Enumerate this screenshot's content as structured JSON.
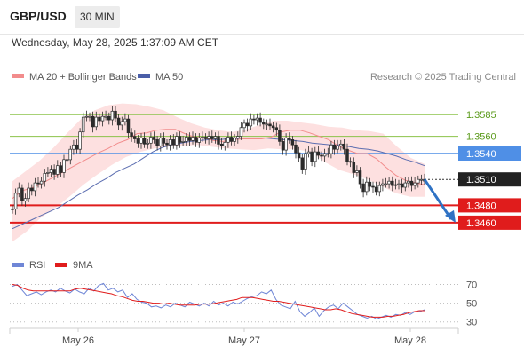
{
  "header": {
    "pair": "GBP/USD",
    "timeframe": "30 MIN"
  },
  "timestamp": "Wednesday, May 28, 2025 1:37:09 AM CET",
  "credit": "Research © 2025 Trading Central",
  "colors": {
    "bull": "#2e7d32",
    "bear": "#c62828",
    "ma20": "#f28c8c",
    "band": "#fde0e0",
    "ma50": "#5b6db0",
    "target": "#e01c1c",
    "resistance": "#8bc34a",
    "pivot": "#4f8fe6",
    "arrow": "#2f72c4",
    "rsi": "#6f86d6",
    "rsi_ma": "#e01c1c"
  },
  "chart_data": [
    {
      "type": "candlestick",
      "title": "",
      "legend": [
        "MA 20 + Bollinger Bands",
        "MA 50"
      ],
      "x_ticks": [
        "May 26",
        "May 27",
        "May 28"
      ],
      "ylim": [
        1.3425,
        1.3615
      ],
      "levels": [
        {
          "label": "1.3585",
          "value": 1.3585,
          "kind": "resistance"
        },
        {
          "label": "1.3560",
          "value": 1.356,
          "kind": "resistance"
        },
        {
          "label": "1.3540",
          "value": 1.354,
          "kind": "pivot"
        },
        {
          "label": "1.3510",
          "value": 1.351,
          "kind": "last"
        },
        {
          "label": "1.3480",
          "value": 1.348,
          "kind": "target"
        },
        {
          "label": "1.3460",
          "value": 1.346,
          "kind": "target"
        }
      ],
      "close": [
        1.3476,
        1.3494,
        1.35,
        1.3485,
        1.3488,
        1.35,
        1.3497,
        1.3506,
        1.3505,
        1.3508,
        1.3517,
        1.3518,
        1.3522,
        1.3516,
        1.3526,
        1.3518,
        1.3533,
        1.3533,
        1.3545,
        1.355,
        1.3545,
        1.3565,
        1.3582,
        1.3583,
        1.3583,
        1.3571,
        1.3582,
        1.3578,
        1.3583,
        1.3583,
        1.3579,
        1.3589,
        1.3581,
        1.3573,
        1.3577,
        1.358,
        1.3564,
        1.356,
        1.3557,
        1.3552,
        1.3558,
        1.3551,
        1.3552,
        1.3559,
        1.3556,
        1.3549,
        1.3558,
        1.3552,
        1.355,
        1.3556,
        1.355,
        1.356,
        1.3553,
        1.3554,
        1.3559,
        1.3555,
        1.3559,
        1.3553,
        1.3558,
        1.3559,
        1.3557,
        1.356,
        1.3557,
        1.356,
        1.3551,
        1.3549,
        1.3553,
        1.3559,
        1.3554,
        1.3558,
        1.356,
        1.357,
        1.3575,
        1.3572,
        1.358,
        1.3579,
        1.3581,
        1.3576,
        1.3574,
        1.3574,
        1.3572,
        1.357,
        1.3567,
        1.3554,
        1.3544,
        1.3558,
        1.3556,
        1.355,
        1.3541,
        1.3535,
        1.3522,
        1.354,
        1.3542,
        1.3531,
        1.3542,
        1.3538,
        1.3537,
        1.354,
        1.354,
        1.355,
        1.3545,
        1.3549,
        1.3551,
        1.3545,
        1.3531,
        1.353,
        1.3518,
        1.352,
        1.3505,
        1.3496,
        1.3507,
        1.3502,
        1.3501,
        1.3496,
        1.3503,
        1.3505,
        1.3505,
        1.3508,
        1.3503,
        1.3504,
        1.3505,
        1.3501,
        1.3506,
        1.3508,
        1.3503,
        1.3506,
        1.351,
        1.351,
        1.3508
      ],
      "ma20": [
        1.3488,
        1.3497,
        1.35,
        1.3505,
        1.3511,
        1.3517,
        1.3523,
        1.3529,
        1.3535,
        1.3541,
        1.3546,
        1.3552,
        1.3556,
        1.3563,
        1.3564,
        1.3567,
        1.3568,
        1.3568,
        1.3563,
        1.3559,
        1.3558,
        1.3555,
        1.3554,
        1.3556,
        1.3557,
        1.3557,
        1.3557,
        1.3559,
        1.3565,
        1.3567,
        1.3567,
        1.3564,
        1.356,
        1.3556,
        1.3549,
        1.3544,
        1.354,
        1.354,
        1.3534,
        1.3524,
        1.3515,
        1.3509,
        1.3506,
        1.3504
      ],
      "ma50": [
        1.3453,
        1.3458,
        1.3463,
        1.3468,
        1.3473,
        1.3478,
        1.3485,
        1.3492,
        1.3498,
        1.3505,
        1.3511,
        1.3518,
        1.3523,
        1.3528,
        1.3535,
        1.3542,
        1.3547,
        1.355,
        1.3552,
        1.3554,
        1.3555,
        1.3556,
        1.3556,
        1.3557,
        1.3557,
        1.3558,
        1.3558,
        1.3558,
        1.3557,
        1.3556,
        1.3555,
        1.3554,
        1.3552,
        1.3551,
        1.355,
        1.355,
        1.3548,
        1.3546,
        1.3545,
        1.3543,
        1.354,
        1.3537,
        1.3533,
        1.353,
        1.3526
      ],
      "band_upper": [
        1.3508,
        1.352,
        1.3532,
        1.3547,
        1.3564,
        1.358,
        1.359,
        1.3596,
        1.3598,
        1.3597,
        1.3594,
        1.359,
        1.3582,
        1.3575,
        1.357,
        1.3567,
        1.3565,
        1.3568,
        1.3573,
        1.3578,
        1.3578,
        1.3576,
        1.3574,
        1.3571,
        1.357,
        1.3567,
        1.3566,
        1.3563,
        1.3548,
        1.3535,
        1.3528
      ],
      "band_lower": [
        1.3438,
        1.345,
        1.3466,
        1.3477,
        1.349,
        1.3504,
        1.3516,
        1.3527,
        1.3536,
        1.3542,
        1.3546,
        1.3548,
        1.3549,
        1.355,
        1.3548,
        1.3546,
        1.3545,
        1.3544,
        1.3546,
        1.3545,
        1.3545,
        1.3542,
        1.353,
        1.3521,
        1.3516,
        1.351,
        1.3502,
        1.3494,
        1.349,
        1.349
      ]
    },
    {
      "type": "line",
      "title": "",
      "legend": [
        "RSI",
        "9MA"
      ],
      "ylim": [
        25,
        78
      ],
      "y_ticks": [
        "70",
        "50",
        "30"
      ],
      "series": [
        {
          "name": "RSI",
          "values": [
            68,
            70,
            64,
            58,
            60,
            62,
            59,
            62,
            64,
            62,
            66,
            63,
            61,
            65,
            62,
            60,
            66,
            63,
            69,
            71,
            64,
            66,
            62,
            64,
            56,
            60,
            54,
            51,
            50,
            46,
            47,
            45,
            48,
            46,
            50,
            48,
            46,
            51,
            49,
            47,
            50,
            47,
            52,
            48,
            50,
            47,
            51,
            49,
            52,
            55,
            57,
            58,
            62,
            60,
            64,
            54,
            48,
            46,
            44,
            52,
            41,
            36,
            40,
            45,
            36,
            42,
            46,
            48,
            44,
            50,
            46,
            42,
            38,
            36,
            34,
            36,
            33,
            35,
            37,
            35,
            38,
            37,
            40,
            38,
            41,
            41,
            43
          ]
        },
        {
          "name": "9MA",
          "values": [
            70,
            69,
            66,
            64,
            63,
            63,
            63,
            63,
            63,
            63,
            63,
            63,
            65,
            66,
            65,
            64,
            63,
            62,
            61,
            60,
            58,
            57,
            55,
            53,
            52,
            52,
            51,
            50,
            50,
            49,
            50,
            49,
            48,
            48,
            48,
            48,
            49,
            49,
            49,
            50,
            51,
            52,
            53,
            54,
            56,
            56,
            56,
            55,
            54,
            53,
            52,
            52,
            51,
            50,
            49,
            48,
            47,
            46,
            45,
            44,
            43,
            43,
            44,
            43,
            41,
            39,
            38,
            37,
            36,
            35,
            35,
            35,
            36,
            36,
            37,
            38,
            40,
            41,
            42,
            42
          ]
        }
      ]
    }
  ]
}
